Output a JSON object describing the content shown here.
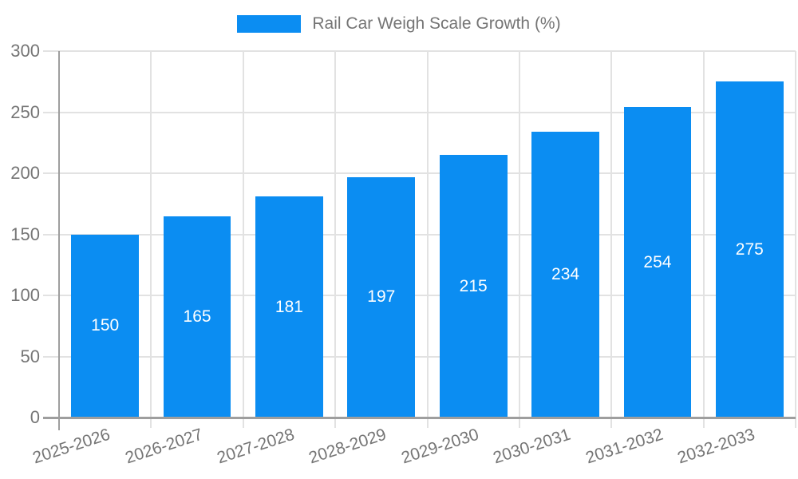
{
  "chart_data": {
    "type": "bar",
    "title": "Rail Car Weigh Scale Growth (%)",
    "categories": [
      "2025-2026",
      "2026-2027",
      "2027-2028",
      "2028-2029",
      "2029-2030",
      "2030-2031",
      "2031-2032",
      "2032-2033"
    ],
    "values": [
      150,
      165,
      181,
      197,
      215,
      234,
      254,
      275
    ],
    "value_labels": [
      "150",
      "165",
      "181",
      "197",
      "215",
      "234",
      "254",
      "275"
    ],
    "xlabel": "",
    "ylabel": "",
    "ylim": [
      0,
      300
    ],
    "yticks": [
      0,
      50,
      100,
      150,
      200,
      250,
      300
    ],
    "grid": true,
    "legend_position": "top-center",
    "colors": {
      "bar": "#0b8df2",
      "grid": "#e2e2e2",
      "axis": "#9e9e9e",
      "tick_text": "#757575",
      "legend_text": "#757575",
      "value_text": "#ffffff",
      "background": "#ffffff"
    }
  }
}
